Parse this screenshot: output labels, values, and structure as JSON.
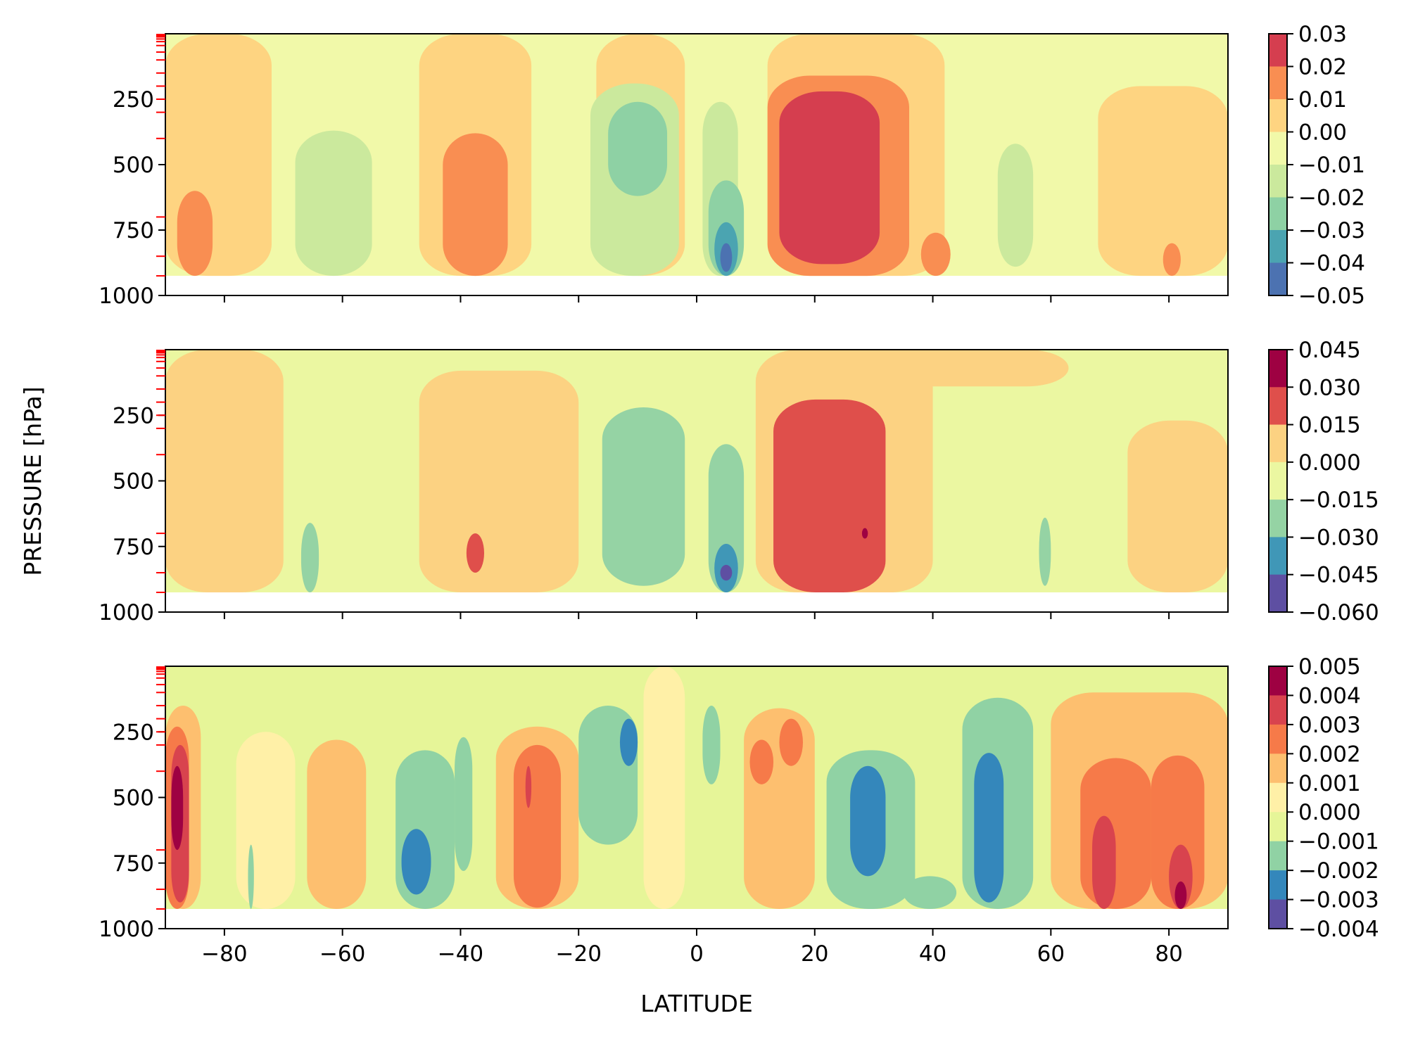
{
  "chart_data": {
    "type": "heatmap",
    "xlabel": "LATITUDE",
    "ylabel": "PRESSURE [hPa]",
    "xlim": [
      -90,
      90
    ],
    "ylim": [
      1000,
      0
    ],
    "x_ticks": [
      "−80",
      "−60",
      "−40",
      "−20",
      "0",
      "20",
      "40",
      "60",
      "80"
    ],
    "x_tick_values": [
      -80,
      -60,
      -40,
      -20,
      0,
      20,
      40,
      60,
      80
    ],
    "y_ticks": [
      "250",
      "500",
      "750",
      "1000"
    ],
    "y_tick_values": [
      250,
      500,
      750,
      1000
    ],
    "model_levels_hpa": [
      3,
      7,
      12,
      20,
      30,
      45,
      70,
      100,
      150,
      200,
      250,
      300,
      400,
      700,
      850,
      925
    ],
    "panels": [
      {
        "colorbar_ticks": [
          "0.03",
          "0.02",
          "0.01",
          "0.00",
          "−0.01",
          "−0.02",
          "−0.03",
          "−0.04",
          "−0.05"
        ],
        "levels": [
          0.03,
          0.02,
          0.01,
          0.0,
          -0.01,
          -0.02,
          -0.03,
          -0.04,
          -0.05
        ],
        "colors": [
          "#d53e4f",
          "#f98e52",
          "#fed481",
          "#f1f9a9",
          "#cbe99d",
          "#8ed1a4",
          "#4ba4b1",
          "#4c72b1"
        ],
        "background_color": "#f1f9a9",
        "features": [
          {
            "lat": [
              -90,
              -72
            ],
            "p": [
              925,
              0
            ],
            "value": 0.005
          },
          {
            "lat": [
              -47,
              -28
            ],
            "p": [
              925,
              0
            ],
            "value": 0.005
          },
          {
            "lat": [
              -17,
              -2
            ],
            "p": [
              925,
              0
            ],
            "value": 0.005
          },
          {
            "lat": [
              12,
              42
            ],
            "p": [
              925,
              0
            ],
            "value": 0.005
          },
          {
            "lat": [
              68,
              90
            ],
            "p": [
              925,
              200
            ],
            "value": 0.005
          },
          {
            "lat": [
              -68,
              -55
            ],
            "p": [
              925,
              370
            ],
            "value": -0.015
          },
          {
            "lat": [
              -43,
              -32
            ],
            "p": [
              925,
              380
            ],
            "value": 0.015
          },
          {
            "lat": [
              -18,
              -3
            ],
            "p": [
              925,
              190
            ],
            "value": -0.015
          },
          {
            "lat": [
              -15,
              -5
            ],
            "p": [
              620,
              260
            ],
            "value": -0.025
          },
          {
            "lat": [
              1,
              7
            ],
            "p": [
              925,
              260
            ],
            "value": -0.015
          },
          {
            "lat": [
              2,
              8
            ],
            "p": [
              925,
              560
            ],
            "value": -0.025
          },
          {
            "lat": [
              3,
              7
            ],
            "p": [
              925,
              720
            ],
            "value": -0.035
          },
          {
            "lat": [
              4,
              6
            ],
            "p": [
              910,
              800
            ],
            "value": -0.045
          },
          {
            "lat": [
              12,
              36
            ],
            "p": [
              925,
              160
            ],
            "value": 0.015
          },
          {
            "lat": [
              14,
              31
            ],
            "p": [
              880,
              220
            ],
            "value": 0.025
          },
          {
            "lat": [
              51,
              57
            ],
            "p": [
              890,
              420
            ],
            "value": -0.015
          },
          {
            "lat": [
              -88,
              -82
            ],
            "p": [
              925,
              600
            ],
            "value": 0.015
          },
          {
            "lat": [
              38,
              43
            ],
            "p": [
              925,
              760
            ],
            "value": 0.015
          },
          {
            "lat": [
              79,
              82
            ],
            "p": [
              925,
              800
            ],
            "value": 0.015
          }
        ]
      },
      {
        "colorbar_ticks": [
          "0.045",
          "0.030",
          "0.015",
          "0.000",
          "−0.015",
          "−0.030",
          "−0.045",
          "−0.060"
        ],
        "levels": [
          0.045,
          0.03,
          0.015,
          0.0,
          -0.015,
          -0.03,
          -0.045,
          -0.06
        ],
        "colors": [
          "#9e0142",
          "#df4f4b",
          "#fcd282",
          "#ebf7a1",
          "#95d3a4",
          "#4097b7",
          "#5e4fa2"
        ],
        "background_color": "#ebf7a1",
        "features": [
          {
            "lat": [
              -90,
              -70
            ],
            "p": [
              925,
              0
            ],
            "value": 0.007
          },
          {
            "lat": [
              -47,
              -20
            ],
            "p": [
              925,
              80
            ],
            "value": 0.007
          },
          {
            "lat": [
              10,
              40
            ],
            "p": [
              925,
              0
            ],
            "value": 0.007
          },
          {
            "lat": [
              25,
              63
            ],
            "p": [
              140,
              0
            ],
            "value": 0.007
          },
          {
            "lat": [
              73,
              90
            ],
            "p": [
              925,
              270
            ],
            "value": 0.007
          },
          {
            "lat": [
              -16,
              -2
            ],
            "p": [
              900,
              220
            ],
            "value": -0.022
          },
          {
            "lat": [
              2,
              8
            ],
            "p": [
              925,
              360
            ],
            "value": -0.022
          },
          {
            "lat": [
              3,
              7
            ],
            "p": [
              925,
              740
            ],
            "value": -0.037
          },
          {
            "lat": [
              4,
              6
            ],
            "p": [
              880,
              820
            ],
            "value": -0.052
          },
          {
            "lat": [
              13,
              32
            ],
            "p": [
              925,
              190
            ],
            "value": 0.022
          },
          {
            "lat": [
              -39,
              -36
            ],
            "p": [
              850,
              700
            ],
            "value": 0.022
          },
          {
            "lat": [
              28,
              29
            ],
            "p": [
              720,
              680
            ],
            "value": 0.037
          },
          {
            "lat": [
              -67,
              -64
            ],
            "p": [
              925,
              660
            ],
            "value": -0.022
          },
          {
            "lat": [
              58,
              60
            ],
            "p": [
              900,
              640
            ],
            "value": -0.022
          }
        ]
      },
      {
        "colorbar_ticks": [
          "0.005",
          "0.004",
          "0.003",
          "0.002",
          "0.001",
          "0.000",
          "−0.001",
          "−0.002",
          "−0.003",
          "−0.004"
        ],
        "levels": [
          0.005,
          0.004,
          0.003,
          0.002,
          0.001,
          0.0,
          -0.001,
          -0.002,
          -0.003,
          -0.004
        ],
        "colors": [
          "#9e0142",
          "#d8434e",
          "#f67a49",
          "#fdbf6f",
          "#fff0a7",
          "#e6f598",
          "#90d2a4",
          "#3487bb",
          "#5e4fa2"
        ],
        "background_color": "#e6f598",
        "features": [
          {
            "lat": [
              -90,
              -84
            ],
            "p": [
              925,
              150
            ],
            "value": 0.0015
          },
          {
            "lat": [
              -90,
              -86
            ],
            "p": [
              925,
              230
            ],
            "value": 0.0025
          },
          {
            "lat": [
              -89,
              -86
            ],
            "p": [
              900,
              300
            ],
            "value": 0.0035
          },
          {
            "lat": [
              -89,
              -87
            ],
            "p": [
              700,
              380
            ],
            "value": 0.0045
          },
          {
            "lat": [
              -78,
              -68
            ],
            "p": [
              925,
              250
            ],
            "value": 0.0005
          },
          {
            "lat": [
              -66,
              -56
            ],
            "p": [
              925,
              280
            ],
            "value": 0.0015
          },
          {
            "lat": [
              -51,
              -41
            ],
            "p": [
              925,
              320
            ],
            "value": -0.0015
          },
          {
            "lat": [
              -50,
              -45
            ],
            "p": [
              870,
              620
            ],
            "value": -0.0025
          },
          {
            "lat": [
              -41,
              -38
            ],
            "p": [
              780,
              270
            ],
            "value": -0.0015
          },
          {
            "lat": [
              -34,
              -20
            ],
            "p": [
              925,
              230
            ],
            "value": 0.0015
          },
          {
            "lat": [
              -31,
              -23
            ],
            "p": [
              920,
              300
            ],
            "value": 0.0025
          },
          {
            "lat": [
              -29,
              -28
            ],
            "p": [
              540,
              380
            ],
            "value": 0.0035
          },
          {
            "lat": [
              -20,
              -10
            ],
            "p": [
              680,
              150
            ],
            "value": -0.0015
          },
          {
            "lat": [
              -13,
              -10
            ],
            "p": [
              380,
              200
            ],
            "value": -0.0025
          },
          {
            "lat": [
              -9,
              -2
            ],
            "p": [
              925,
              0
            ],
            "value": 0.0005
          },
          {
            "lat": [
              1,
              4
            ],
            "p": [
              450,
              150
            ],
            "value": -0.0015
          },
          {
            "lat": [
              8,
              20
            ],
            "p": [
              925,
              160
            ],
            "value": 0.0015
          },
          {
            "lat": [
              9,
              13
            ],
            "p": [
              450,
              280
            ],
            "value": 0.0025
          },
          {
            "lat": [
              14,
              18
            ],
            "p": [
              380,
              200
            ],
            "value": 0.0025
          },
          {
            "lat": [
              22,
              37
            ],
            "p": [
              925,
              320
            ],
            "value": -0.0015
          },
          {
            "lat": [
              26,
              32
            ],
            "p": [
              800,
              380
            ],
            "value": -0.0025
          },
          {
            "lat": [
              35,
              44
            ],
            "p": [
              925,
              800
            ],
            "value": -0.0015
          },
          {
            "lat": [
              45,
              57
            ],
            "p": [
              925,
              120
            ],
            "value": -0.0015
          },
          {
            "lat": [
              47,
              52
            ],
            "p": [
              900,
              330
            ],
            "value": -0.0025
          },
          {
            "lat": [
              60,
              90
            ],
            "p": [
              925,
              100
            ],
            "value": 0.0015
          },
          {
            "lat": [
              65,
              77
            ],
            "p": [
              925,
              350
            ],
            "value": 0.0025
          },
          {
            "lat": [
              67,
              71
            ],
            "p": [
              925,
              570
            ],
            "value": 0.0035
          },
          {
            "lat": [
              77,
              86
            ],
            "p": [
              925,
              340
            ],
            "value": 0.0025
          },
          {
            "lat": [
              80,
              84
            ],
            "p": [
              925,
              680
            ],
            "value": 0.0035
          },
          {
            "lat": [
              81,
              83
            ],
            "p": [
              925,
              820
            ],
            "value": 0.0045
          },
          {
            "lat": [
              -76,
              -75
            ],
            "p": [
              925,
              680
            ],
            "value": -0.0015
          }
        ]
      }
    ]
  }
}
